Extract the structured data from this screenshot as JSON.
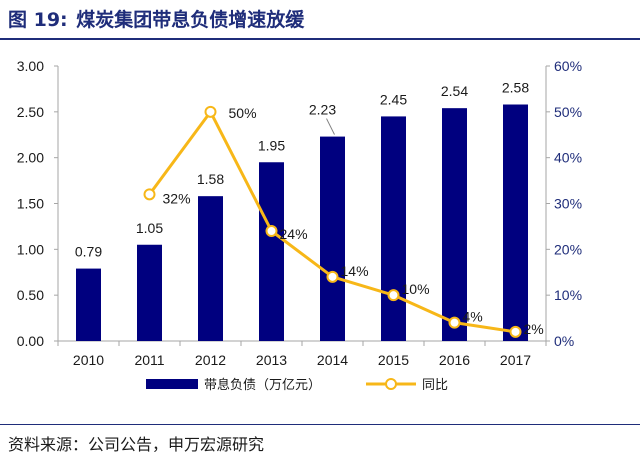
{
  "header": {
    "figure_number": "图 19:",
    "figure_title": "煤炭集团带息负债增速放缓"
  },
  "footer": {
    "source": "资料来源：公司公告，申万宏源研究"
  },
  "colors": {
    "bar": "#00007f",
    "line": "#f7b718",
    "title": "#1f2d7a",
    "right_axis_text": "#1f2d7a"
  },
  "chart_data": {
    "type": "bar",
    "categories": [
      "2010",
      "2011",
      "2012",
      "2013",
      "2014",
      "2015",
      "2016",
      "2017"
    ],
    "series": [
      {
        "name": "带息负债（万亿元）",
        "type": "bar",
        "axis": "left",
        "values": [
          0.79,
          1.05,
          1.58,
          1.95,
          2.23,
          2.45,
          2.54,
          2.58
        ],
        "labels": [
          "0.79",
          "1.05",
          "1.58",
          "1.95",
          "2.23",
          "2.45",
          "2.54",
          "2.58"
        ]
      },
      {
        "name": "同比",
        "type": "line",
        "axis": "right",
        "values": [
          null,
          32,
          50,
          24,
          14,
          10,
          4,
          2
        ],
        "labels": [
          "",
          "32%",
          "50%",
          "24%",
          "14%",
          "10%",
          "4%",
          "2%"
        ]
      }
    ],
    "left_axis": {
      "ylim": [
        0,
        3
      ],
      "ticks": [
        "0.00",
        "0.50",
        "1.00",
        "1.50",
        "2.00",
        "2.50",
        "3.00"
      ]
    },
    "right_axis": {
      "ylim": [
        0,
        60
      ],
      "ticks": [
        "0%",
        "10%",
        "20%",
        "30%",
        "40%",
        "50%",
        "60%"
      ]
    },
    "grid": false,
    "legend_position": "bottom-center"
  }
}
